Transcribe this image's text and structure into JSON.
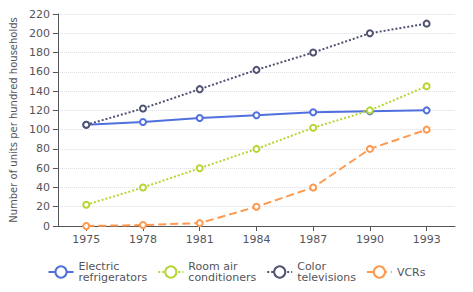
{
  "chart_data": {
    "type": "line",
    "x": [
      1975,
      1978,
      1981,
      1984,
      1987,
      1990,
      1993
    ],
    "series": [
      {
        "name": "Electric\nrefrigerators",
        "values": [
          105,
          108,
          112,
          115,
          118,
          119,
          120
        ],
        "line_style": "solid"
      },
      {
        "name": "Room air\nconditioners",
        "values": [
          22,
          40,
          60,
          80,
          102,
          120,
          145
        ],
        "line_style": "dotted"
      },
      {
        "name": "Color\ntelevisions",
        "values": [
          105,
          122,
          142,
          162,
          180,
          200,
          210
        ],
        "line_style": "dotted"
      },
      {
        "name": "VCRs",
        "values": [
          0,
          1,
          3,
          20,
          40,
          80,
          100
        ],
        "line_style": "dashed"
      }
    ],
    "ylabel": "Number of units per hundred households",
    "xlim": [
      1973.5,
      1994.5
    ],
    "xticks": [
      1975,
      1978,
      1981,
      1984,
      1987,
      1990,
      1993
    ],
    "ylim": [
      0,
      220
    ],
    "yticks": [
      0,
      20,
      40,
      60,
      80,
      100,
      120,
      140,
      160,
      180,
      200,
      220
    ],
    "grid": true,
    "legend": "bottom"
  }
}
